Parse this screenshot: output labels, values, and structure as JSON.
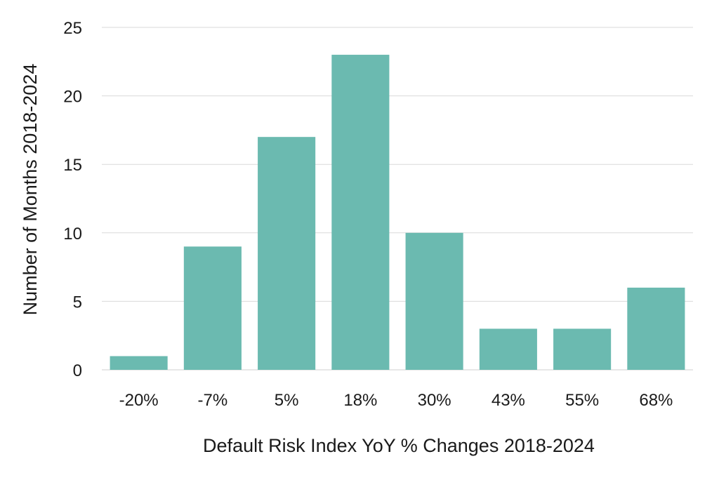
{
  "chart_data": {
    "type": "bar",
    "categories": [
      "-20%",
      "-7%",
      "5%",
      "18%",
      "30%",
      "43%",
      "55%",
      "68%"
    ],
    "values": [
      1,
      9,
      17,
      23,
      10,
      3,
      3,
      6
    ],
    "title": "",
    "xlabel": "Default Risk Index YoY % Changes 2018-2024",
    "ylabel": "Number of Months 2018-2024",
    "ylim": [
      0,
      25
    ],
    "yticks": [
      0,
      5,
      10,
      15,
      20,
      25
    ],
    "grid": true,
    "legend": "none",
    "colors": {
      "bar": "#6bbab0",
      "grid": "#d9d9d9",
      "text": "#1a1a1a"
    }
  }
}
